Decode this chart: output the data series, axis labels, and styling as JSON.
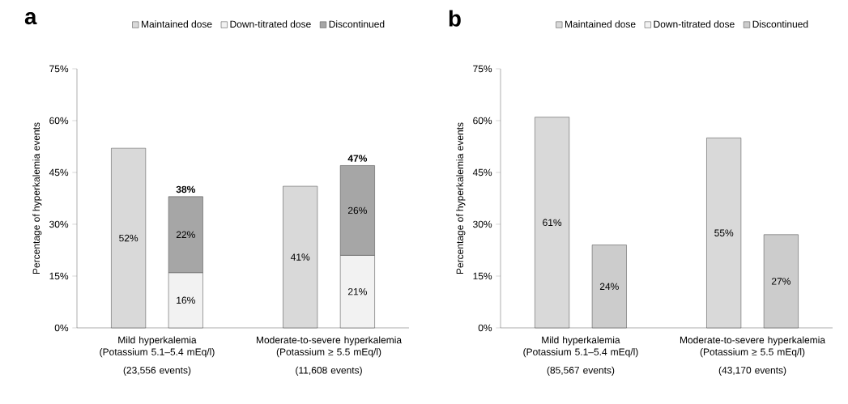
{
  "chart_data": [
    {
      "type": "bar",
      "title": "a",
      "ylabel": "Percentage of hyperkalemia events",
      "stacked": true,
      "categories": [
        "Mild hyperkalemia (Potassium 5.1–5.4 mEq/l)",
        null,
        null,
        "Moderate-to-severe hyperkalemia (Potassium ≥ 5.5 mEq/l)",
        null
      ],
      "annotations": [
        "(23,556 events)",
        "(11,608 events)"
      ],
      "series": [
        {
          "name": "Maintained dose",
          "color": "#d9d9d9",
          "values": [
            52,
            null,
            null,
            41,
            null
          ],
          "value_labels": [
            "52%",
            null,
            null,
            "41%",
            null
          ]
        },
        {
          "name": "Down-titrated dose",
          "color": "#f2f2f2",
          "values": [
            null,
            16,
            null,
            null,
            21
          ],
          "value_labels": [
            null,
            "16%",
            null,
            null,
            "21%"
          ]
        },
        {
          "name": "Discontinued",
          "color": "#a6a6a6",
          "values": [
            null,
            22,
            null,
            null,
            26
          ],
          "value_labels": [
            null,
            "22%",
            null,
            null,
            "26%"
          ]
        }
      ],
      "totals": [
        null,
        "38%",
        null,
        null,
        "47%"
      ],
      "ylim": [
        0,
        75
      ],
      "yticks": [
        {
          "value": 0,
          "label": "0%"
        },
        {
          "value": 15,
          "label": "15%"
        },
        {
          "value": 30,
          "label": "30%"
        },
        {
          "value": 45,
          "label": "45%"
        },
        {
          "value": 60,
          "label": "60%"
        },
        {
          "value": 75,
          "label": "75%"
        }
      ],
      "legend": "top"
    },
    {
      "type": "bar",
      "title": "b",
      "ylabel": "Percentage of hyperkalemia events",
      "stacked": true,
      "categories": [
        "Mild hyperkalemia (Potassium 5.1–5.4 mEq/l)",
        null,
        null,
        "Moderate-to-severe hyperkalemia (Potassium ≥ 5.5 mEq/l)",
        null
      ],
      "annotations": [
        "(85,567 events)",
        "(43,170 events)"
      ],
      "series": [
        {
          "name": "Maintained dose",
          "color": "#d9d9d9",
          "values": [
            61,
            null,
            null,
            55,
            null
          ],
          "value_labels": [
            "61%",
            null,
            null,
            "55%",
            null
          ]
        },
        {
          "name": "Down-titrated dose",
          "color": "#f2f2f2",
          "values": [
            null,
            null,
            null,
            null,
            null
          ]
        },
        {
          "name": "Discontinued",
          "color": "#cccccc",
          "values": [
            null,
            24,
            null,
            null,
            27
          ],
          "value_labels": [
            null,
            "24%",
            null,
            null,
            "27%"
          ]
        }
      ],
      "ylim": [
        0,
        75
      ],
      "yticks": [
        {
          "value": 0,
          "label": "0%"
        },
        {
          "value": 15,
          "label": "15%"
        },
        {
          "value": 30,
          "label": "30%"
        },
        {
          "value": 45,
          "label": "45%"
        },
        {
          "value": 60,
          "label": "60%"
        },
        {
          "value": 75,
          "label": "75%"
        }
      ],
      "legend": "top"
    }
  ]
}
